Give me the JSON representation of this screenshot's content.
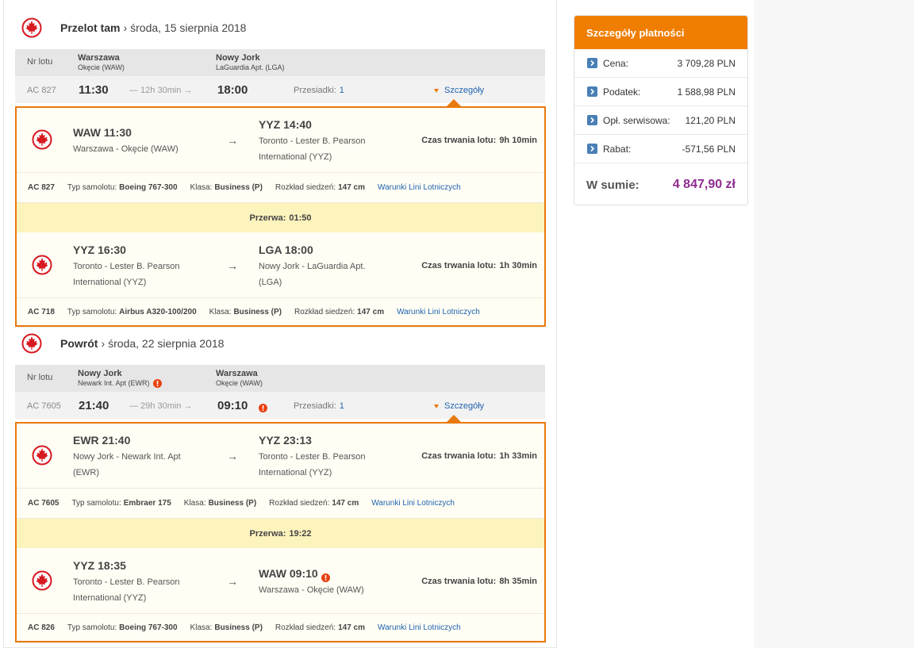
{
  "labels": {
    "flight_no": "Nr lotu",
    "transfers": "Przesiadki:",
    "details": "Szczegóły",
    "arrow": "→",
    "duration": "Czas trwania lotu:",
    "aircraft": "Typ samolotu:",
    "class": "Klasa:",
    "seat": "Rozkład siedzeń:",
    "conditions": "Warunki Lini Lotniczych",
    "break": "Przerwa:"
  },
  "outbound": {
    "title": "Przelot tam",
    "separator": "›",
    "date": "środa, 15 sierpnia 2018",
    "header": {
      "from_city": "Warszawa",
      "from_airport": "Okęcie (WAW)",
      "to_city": "Nowy Jork",
      "to_airport": "LaGuardia Apt. (LGA)"
    },
    "summary": {
      "flight": "AC 827",
      "departure": "11:30",
      "duration": "— 12h 30min →",
      "arrival": "18:00",
      "transfers": "1"
    },
    "segments": [
      {
        "departure": "WAW 11:30",
        "from": "Warszawa - Okęcie (WAW)",
        "arrival": "YYZ 14:40",
        "to": "Toronto - Lester B. Pearson International (YYZ)",
        "duration": "9h 10min",
        "flight": "AC 827",
        "aircraft": "Boeing 767-300",
        "class": "Business (P)",
        "seat": "147 cm"
      },
      {
        "departure": "YYZ 16:30",
        "from": "Toronto - Lester B. Pearson International (YYZ)",
        "arrival": "LGA 18:00",
        "to": "Nowy Jork - LaGuardia Apt. (LGA)",
        "duration": "1h 30min",
        "flight": "AC 718",
        "aircraft": "Airbus A320-100/200",
        "class": "Business (P)",
        "seat": "147 cm"
      }
    ],
    "break": "01:50"
  },
  "return": {
    "title": "Powrót",
    "separator": "›",
    "date": "środa, 22 sierpnia 2018",
    "header": {
      "from_city": "Nowy Jork",
      "from_airport": "Newark Int. Apt (EWR)",
      "from_warning": true,
      "to_city": "Warszawa",
      "to_airport": "Okęcie (WAW)"
    },
    "summary": {
      "flight": "AC 7605",
      "departure": "21:40",
      "duration": "— 29h 30min →",
      "arrival": "09:10",
      "arrival_warning": true,
      "transfers": "1"
    },
    "segments": [
      {
        "departure": "EWR 21:40",
        "from": "Nowy Jork - Newark Int. Apt (EWR)",
        "arrival": "YYZ 23:13",
        "to": "Toronto - Lester B. Pearson International (YYZ)",
        "duration": "1h 33min",
        "flight": "AC 7605",
        "aircraft": "Embraer 175",
        "class": "Business (P)",
        "seat": "147 cm"
      },
      {
        "departure": "YYZ 18:35",
        "from": "Toronto - Lester B. Pearson International (YYZ)",
        "arrival": "WAW 09:10",
        "arrival_warning": true,
        "to": "Warszawa - Okęcie (WAW)",
        "duration": "8h 35min",
        "flight": "AC 826",
        "aircraft": "Boeing 767-300",
        "class": "Business (P)",
        "seat": "147 cm"
      }
    ],
    "break": "19:22"
  },
  "payment": {
    "title": "Szczegóły płatności",
    "rows": [
      {
        "label": "Cena:",
        "value": "3 709,28 PLN"
      },
      {
        "label": "Podatek:",
        "value": "1 588,98 PLN"
      },
      {
        "label": "Opł. serwisowa:",
        "value": "121,20 PLN"
      },
      {
        "label": "Rabat:",
        "value": "-571,56 PLN"
      }
    ],
    "total_label": "W sumie:",
    "total": "4 847,90 zł"
  }
}
